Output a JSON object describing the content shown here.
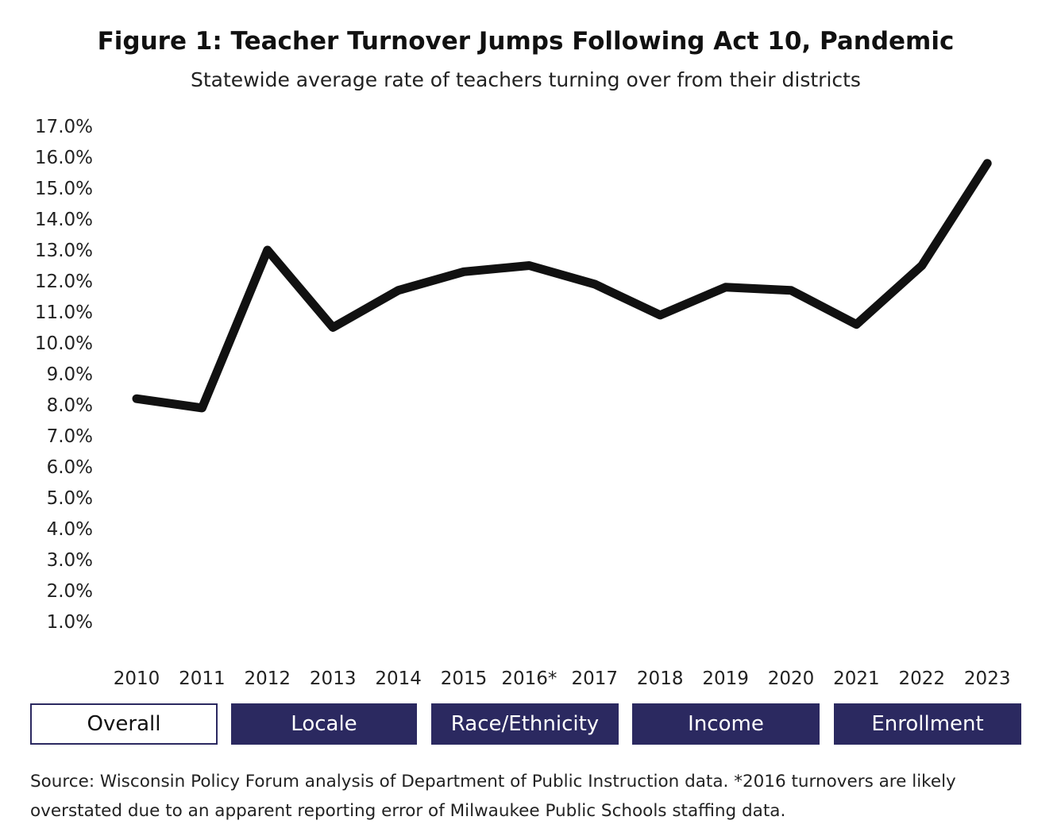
{
  "header": {
    "title": "Figure 1: Teacher Turnover Jumps Following Act 10, Pandemic",
    "subtitle": "Statewide average rate of teachers turning over from their districts"
  },
  "chart_data": {
    "type": "line",
    "title": "Figure 1: Teacher Turnover Jumps Following Act 10, Pandemic",
    "subtitle": "Statewide average rate of teachers turning over from their districts",
    "categories": [
      "2010",
      "2011",
      "2012",
      "2013",
      "2014",
      "2015",
      "2016*",
      "2017",
      "2018",
      "2019",
      "2020",
      "2021",
      "2022",
      "2023"
    ],
    "series": [
      {
        "values": [
          8.2,
          7.9,
          13.0,
          10.5,
          11.7,
          12.3,
          12.5,
          11.9,
          10.9,
          11.8,
          11.7,
          10.6,
          12.5,
          15.8
        ]
      }
    ],
    "ylim": [
      1,
      17
    ],
    "yticks": [
      1,
      2,
      3,
      4,
      5,
      6,
      7,
      8,
      9,
      10,
      11,
      12,
      13,
      14,
      15,
      16,
      17
    ],
    "ytick_format": "percent_1dp",
    "grid": false,
    "line_color": "#111111"
  },
  "tabs": [
    {
      "label": "Overall",
      "active": true
    },
    {
      "label": "Locale",
      "active": false
    },
    {
      "label": "Race/Ethnicity",
      "active": false
    },
    {
      "label": "Income",
      "active": false
    },
    {
      "label": "Enrollment",
      "active": false
    }
  ],
  "footer": {
    "source": "Source: Wisconsin Policy Forum analysis of Department of Public Instruction data. *2016 turnovers are likely overstated due to an apparent reporting error of Milwaukee Public Schools staffing data."
  },
  "colors": {
    "tab_background": "#2b2960",
    "tab_active_background": "#ffffff"
  }
}
